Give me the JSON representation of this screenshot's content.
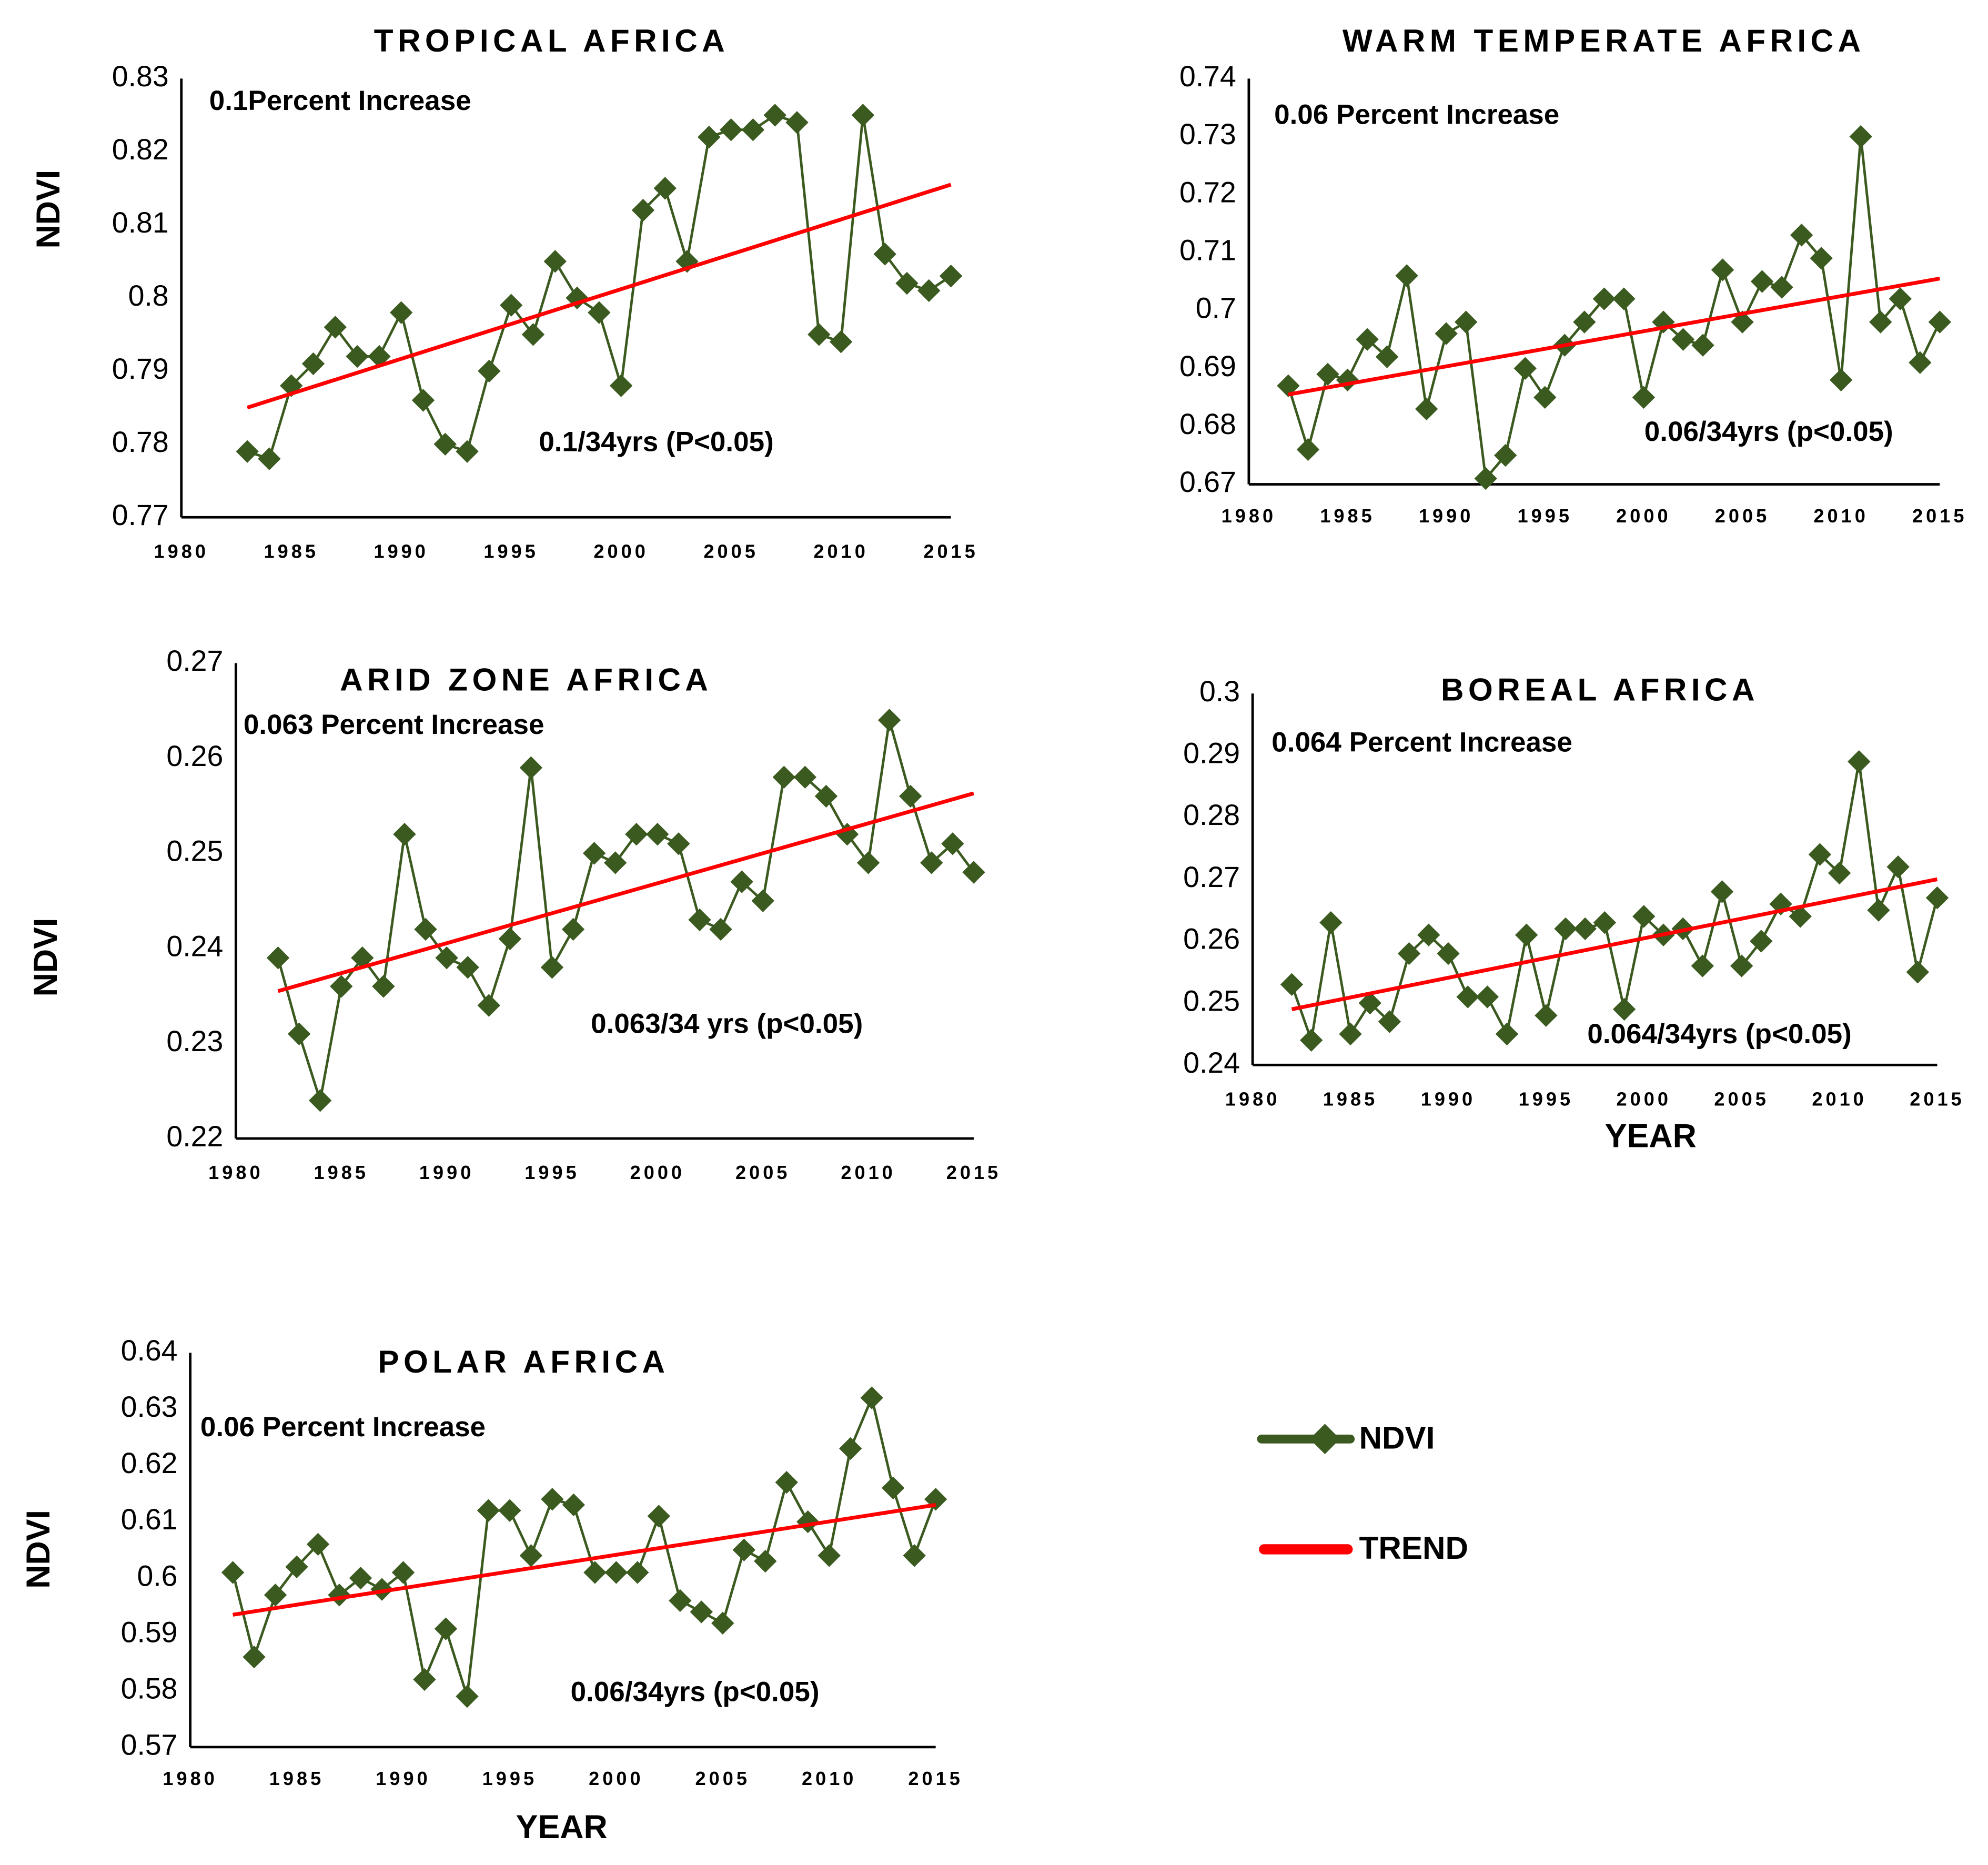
{
  "chart_data": [
    {
      "type": "line",
      "title": "TROPICAL AFRICA",
      "y_label": "NDVI",
      "annotations": [
        "0.1Percent Increase",
        "0.1/34yrs (P<0.05)"
      ],
      "x": [
        1983,
        1984,
        1985,
        1986,
        1987,
        1988,
        1989,
        1990,
        1991,
        1992,
        1993,
        1994,
        1995,
        1996,
        1997,
        1998,
        1999,
        2000,
        2001,
        2002,
        2003,
        2004,
        2005,
        2006,
        2007,
        2008,
        2009,
        2010,
        2011,
        2012,
        2013,
        2014,
        2015
      ],
      "series": [
        {
          "name": "NDVI",
          "color": "#3b5a1f",
          "values": [
            0.779,
            0.778,
            0.788,
            0.791,
            0.796,
            0.792,
            0.792,
            0.798,
            0.786,
            0.78,
            0.779,
            0.79,
            0.799,
            0.795,
            0.805,
            0.8,
            0.798,
            0.788,
            0.812,
            0.815,
            0.805,
            0.822,
            0.823,
            0.823,
            0.825,
            0.824,
            0.795,
            0.794,
            0.825,
            0.806,
            0.802,
            0.801,
            0.803
          ]
        },
        {
          "name": "TREND",
          "color": "#ff0000",
          "x": [
            1983,
            2015
          ],
          "values": [
            0.785,
            0.8155
          ]
        }
      ],
      "xlim": [
        1980,
        2015
      ],
      "xticks": [
        1980,
        1985,
        1990,
        1995,
        2000,
        2005,
        2010,
        2015
      ],
      "ylim": [
        0.77,
        0.83
      ],
      "yticks": [
        0.77,
        0.78,
        0.79,
        0.8,
        0.81,
        0.82,
        0.83
      ]
    },
    {
      "type": "line",
      "title": "WARM TEMPERATE AFRICA",
      "annotations": [
        "0.06 Percent Increase",
        "0.06/34yrs (p<0.05)"
      ],
      "x": [
        1982,
        1983,
        1984,
        1985,
        1986,
        1987,
        1988,
        1989,
        1990,
        1991,
        1992,
        1993,
        1994,
        1995,
        1996,
        1997,
        1998,
        1999,
        2000,
        2001,
        2002,
        2003,
        2004,
        2005,
        2006,
        2007,
        2008,
        2009,
        2010,
        2011,
        2012,
        2013,
        2014,
        2015
      ],
      "series": [
        {
          "name": "NDVI",
          "color": "#3b5a1f",
          "values": [
            0.687,
            0.676,
            0.689,
            0.688,
            0.695,
            0.692,
            0.706,
            0.683,
            0.696,
            0.698,
            0.671,
            0.675,
            0.69,
            0.685,
            0.694,
            0.698,
            0.702,
            0.702,
            0.685,
            0.698,
            0.695,
            0.694,
            0.707,
            0.698,
            0.705,
            0.704,
            0.713,
            0.709,
            0.688,
            0.73,
            0.698,
            0.702,
            0.691,
            0.698
          ]
        },
        {
          "name": "TREND",
          "color": "#ff0000",
          "x": [
            1982,
            2015
          ],
          "values": [
            0.6855,
            0.7055
          ]
        }
      ],
      "xlim": [
        1980,
        2015
      ],
      "xticks": [
        1980,
        1985,
        1990,
        1995,
        2000,
        2005,
        2010,
        2015
      ],
      "ylim": [
        0.67,
        0.74
      ],
      "yticks": [
        0.67,
        0.68,
        0.69,
        0.7,
        0.71,
        0.72,
        0.73,
        0.74
      ]
    },
    {
      "type": "line",
      "title": "ARID ZONE AFRICA",
      "y_label": "NDVI",
      "annotations": [
        "0.063 Percent Increase",
        "0.063/34 yrs (p<0.05)"
      ],
      "x": [
        1982,
        1983,
        1984,
        1985,
        1986,
        1987,
        1988,
        1989,
        1990,
        1991,
        1992,
        1993,
        1994,
        1995,
        1996,
        1997,
        1998,
        1999,
        2000,
        2001,
        2002,
        2003,
        2004,
        2005,
        2006,
        2007,
        2008,
        2009,
        2010,
        2011,
        2012,
        2013,
        2014,
        2015
      ],
      "series": [
        {
          "name": "NDVI",
          "color": "#3b5a1f",
          "values": [
            0.239,
            0.231,
            0.224,
            0.236,
            0.239,
            0.236,
            0.252,
            0.242,
            0.239,
            0.238,
            0.234,
            0.241,
            0.259,
            0.238,
            0.242,
            0.25,
            0.249,
            0.252,
            0.252,
            0.251,
            0.243,
            0.242,
            0.247,
            0.245,
            0.258,
            0.258,
            0.256,
            0.252,
            0.249,
            0.264,
            0.256,
            0.249,
            0.251,
            0.248
          ]
        },
        {
          "name": "TREND",
          "color": "#ff0000",
          "x": [
            1982,
            2015
          ],
          "values": [
            0.2355,
            0.2563
          ]
        }
      ],
      "xlim": [
        1980,
        2015
      ],
      "xticks": [
        1980,
        1985,
        1990,
        1995,
        2000,
        2005,
        2010,
        2015
      ],
      "ylim": [
        0.22,
        0.27
      ],
      "yticks": [
        0.22,
        0.23,
        0.24,
        0.25,
        0.26,
        0.27
      ]
    },
    {
      "type": "line",
      "title": "BOREAL AFRICA",
      "x_label": "YEAR",
      "annotations": [
        "0.064 Percent Increase",
        "0.064/34yrs (p<0.05)"
      ],
      "x": [
        1982,
        1983,
        1984,
        1985,
        1986,
        1987,
        1988,
        1989,
        1990,
        1991,
        1992,
        1993,
        1994,
        1995,
        1996,
        1997,
        1998,
        1999,
        2000,
        2001,
        2002,
        2003,
        2004,
        2005,
        2006,
        2007,
        2008,
        2009,
        2010,
        2011,
        2012,
        2013,
        2014,
        2015
      ],
      "series": [
        {
          "name": "NDVI",
          "color": "#3b5a1f",
          "values": [
            0.253,
            0.244,
            0.263,
            0.245,
            0.25,
            0.247,
            0.258,
            0.261,
            0.258,
            0.251,
            0.251,
            0.245,
            0.261,
            0.248,
            0.262,
            0.262,
            0.263,
            0.249,
            0.264,
            0.261,
            0.262,
            0.256,
            0.268,
            0.256,
            0.26,
            0.266,
            0.264,
            0.274,
            0.271,
            0.289,
            0.265,
            0.272,
            0.255,
            0.267
          ]
        },
        {
          "name": "TREND",
          "color": "#ff0000",
          "x": [
            1982,
            2015
          ],
          "values": [
            0.249,
            0.27
          ]
        }
      ],
      "xlim": [
        1980,
        2015
      ],
      "xticks": [
        1980,
        1985,
        1990,
        1995,
        2000,
        2005,
        2010,
        2015
      ],
      "ylim": [
        0.24,
        0.3
      ],
      "yticks": [
        0.24,
        0.25,
        0.26,
        0.27,
        0.28,
        0.29,
        0.3
      ]
    },
    {
      "type": "line",
      "title": "POLAR AFRICA",
      "y_label": "NDVI",
      "x_label": "YEAR",
      "annotations": [
        "0.06 Percent Increase",
        "0.06/34yrs (p<0.05)"
      ],
      "x": [
        1982,
        1983,
        1984,
        1985,
        1986,
        1987,
        1988,
        1989,
        1990,
        1991,
        1992,
        1993,
        1994,
        1995,
        1996,
        1997,
        1998,
        1999,
        2000,
        2001,
        2002,
        2003,
        2004,
        2005,
        2006,
        2007,
        2008,
        2009,
        2010,
        2011,
        2012,
        2013,
        2014,
        2015
      ],
      "series": [
        {
          "name": "NDVI",
          "color": "#3b5a1f",
          "values": [
            0.601,
            0.586,
            0.597,
            0.602,
            0.606,
            0.597,
            0.6,
            0.598,
            0.601,
            0.582,
            0.591,
            0.579,
            0.612,
            0.612,
            0.604,
            0.614,
            0.613,
            0.601,
            0.601,
            0.601,
            0.611,
            0.596,
            0.594,
            0.592,
            0.605,
            0.603,
            0.617,
            0.61,
            0.604,
            0.623,
            0.632,
            0.616,
            0.604,
            0.614
          ]
        },
        {
          "name": "TREND",
          "color": "#ff0000",
          "x": [
            1982,
            2015
          ],
          "values": [
            0.5935,
            0.613
          ]
        }
      ],
      "xlim": [
        1980,
        2015
      ],
      "xticks": [
        1980,
        1985,
        1990,
        1995,
        2000,
        2005,
        2010,
        2015
      ],
      "ylim": [
        0.57,
        0.64
      ],
      "yticks": [
        0.57,
        0.58,
        0.59,
        0.6,
        0.61,
        0.62,
        0.63,
        0.64
      ]
    }
  ]
}
